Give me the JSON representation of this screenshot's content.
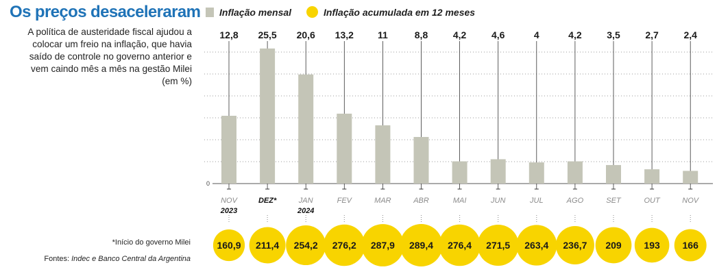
{
  "title": "Os preços desaceleraram",
  "subtitle": "A política de austeridade fiscal ajudou a colocar um freio na inflação, que havia saído de controle no governo anterior e vem caindo mês a mês na gestão Milei (em %)",
  "legend": {
    "monthly": "Inflação mensal",
    "annual": "Inflação acumulada em 12 meses"
  },
  "footnote": "*Início do governo Milei",
  "source": {
    "prefix": "Fontes: ",
    "text": "Indec e Banco Central da Argentina"
  },
  "colors": {
    "title": "#1f73b7",
    "bar": "#c4c5b7",
    "bubble": "#f8d400",
    "grid": "#999999"
  },
  "chart_data": {
    "type": "bar",
    "categories": [
      "NOV",
      "DEZ*",
      "JAN",
      "FEV",
      "MAR",
      "ABR",
      "MAI",
      "JUN",
      "JUL",
      "AGO",
      "SET",
      "OUT",
      "NOV"
    ],
    "years": [
      "2023",
      "",
      "2024",
      "",
      "",
      "",
      "",
      "",
      "",
      "",
      "",
      "",
      ""
    ],
    "highlight_category_index": 1,
    "series": [
      {
        "name": "Inflação mensal",
        "values": [
          12.8,
          25.5,
          20.6,
          13.2,
          11,
          8.8,
          4.2,
          4.6,
          4,
          4.2,
          3.5,
          2.7,
          2.4
        ],
        "labels": [
          "12,8",
          "25,5",
          "20,6",
          "13,2",
          "11",
          "8,8",
          "4,2",
          "4,6",
          "4",
          "4,2",
          "3,5",
          "2,7",
          "2,4"
        ]
      },
      {
        "name": "Inflação acumulada em 12 meses",
        "values": [
          160.9,
          211.4,
          254.2,
          276.2,
          287.9,
          289.4,
          276.4,
          271.5,
          263.4,
          236.7,
          209,
          193,
          166
        ],
        "labels": [
          "160,9",
          "211,4",
          "254,2",
          "276,2",
          "287,9",
          "289,4",
          "276,4",
          "271,5",
          "263,4",
          "236,7",
          "209",
          "193",
          "166"
        ]
      }
    ],
    "y_axis_label": "0",
    "ylim": [
      0,
      30
    ],
    "grid": true
  }
}
